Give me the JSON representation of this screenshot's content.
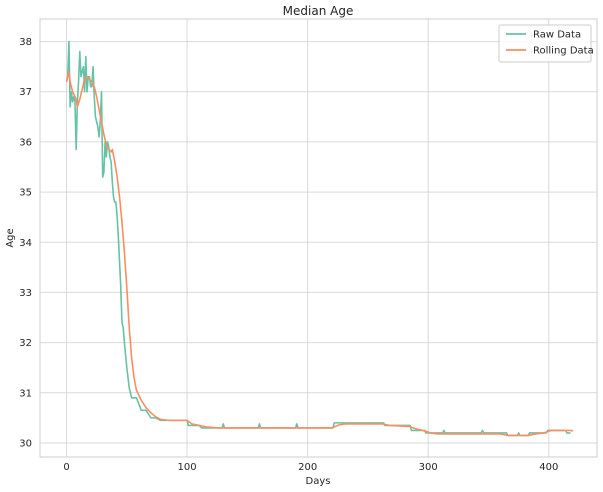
{
  "chart_data": {
    "type": "line",
    "title": "Median Age",
    "xlabel": "Days",
    "ylabel": "Age",
    "xlim": [
      -22,
      440
    ],
    "ylim": [
      29.72,
      38.45
    ],
    "xticks": [
      0,
      100,
      200,
      300,
      400
    ],
    "yticks": [
      30,
      31,
      32,
      33,
      34,
      35,
      36,
      37,
      38
    ],
    "grid": true,
    "legend_position": "top-right",
    "series": [
      {
        "name": "Raw Data",
        "color": "#66c2a5",
        "points": [
          [
            0,
            37.2
          ],
          [
            1,
            37.3
          ],
          [
            2,
            38.0
          ],
          [
            3,
            36.7
          ],
          [
            4,
            37.0
          ],
          [
            5,
            36.8
          ],
          [
            6,
            36.9
          ],
          [
            7,
            36.8
          ],
          [
            8,
            35.85
          ],
          [
            9,
            36.8
          ],
          [
            10,
            37.2
          ],
          [
            11,
            37.8
          ],
          [
            12,
            37.3
          ],
          [
            13,
            37.4
          ],
          [
            14,
            37.5
          ],
          [
            15,
            37.0
          ],
          [
            16,
            37.7
          ],
          [
            17,
            37.0
          ],
          [
            18,
            37.3
          ],
          [
            19,
            37.3
          ],
          [
            20,
            37.1
          ],
          [
            21,
            37.1
          ],
          [
            22,
            37.5
          ],
          [
            23,
            36.9
          ],
          [
            24,
            36.5
          ],
          [
            25,
            36.4
          ],
          [
            26,
            36.3
          ],
          [
            27,
            36.1
          ],
          [
            28,
            36.4
          ],
          [
            29,
            37.0
          ],
          [
            30,
            35.3
          ],
          [
            31,
            35.4
          ],
          [
            32,
            36.0
          ],
          [
            33,
            35.7
          ],
          [
            34,
            36.0
          ],
          [
            35,
            35.9
          ],
          [
            36,
            35.7
          ],
          [
            37,
            35.6
          ],
          [
            38,
            35.2
          ],
          [
            39,
            34.9
          ],
          [
            40,
            34.8
          ],
          [
            41,
            34.8
          ],
          [
            42,
            34.5
          ],
          [
            43,
            34.1
          ],
          [
            44,
            33.6
          ],
          [
            45,
            33.1
          ],
          [
            46,
            32.4
          ],
          [
            47,
            32.3
          ],
          [
            48,
            32.0
          ],
          [
            50,
            31.5
          ],
          [
            52,
            31.1
          ],
          [
            54,
            30.9
          ],
          [
            58,
            30.9
          ],
          [
            62,
            30.65
          ],
          [
            66,
            30.65
          ],
          [
            70,
            30.5
          ],
          [
            74,
            30.5
          ],
          [
            78,
            30.45
          ],
          [
            100,
            30.45
          ],
          [
            101,
            30.35
          ],
          [
            110,
            30.35
          ],
          [
            112,
            30.3
          ],
          [
            129,
            30.3
          ],
          [
            130,
            30.38
          ],
          [
            131,
            30.3
          ],
          [
            159,
            30.3
          ],
          [
            160,
            30.38
          ],
          [
            161,
            30.3
          ],
          [
            190,
            30.3
          ],
          [
            191,
            30.38
          ],
          [
            192,
            30.3
          ],
          [
            221,
            30.3
          ],
          [
            222,
            30.4
          ],
          [
            263,
            30.4
          ],
          [
            264,
            30.35
          ],
          [
            285,
            30.35
          ],
          [
            286,
            30.25
          ],
          [
            297,
            30.25
          ],
          [
            298,
            30.2
          ],
          [
            312,
            30.2
          ],
          [
            313,
            30.25
          ],
          [
            314,
            30.2
          ],
          [
            344,
            30.2
          ],
          [
            345,
            30.25
          ],
          [
            346,
            30.2
          ],
          [
            365,
            30.2
          ],
          [
            366,
            30.15
          ],
          [
            374,
            30.15
          ],
          [
            375,
            30.2
          ],
          [
            376,
            30.15
          ],
          [
            383,
            30.15
          ],
          [
            384,
            30.2
          ],
          [
            398,
            30.2
          ],
          [
            399,
            30.25
          ],
          [
            414,
            30.25
          ],
          [
            415,
            30.2
          ],
          [
            418,
            30.2
          ]
        ]
      },
      {
        "name": "Rolling Data",
        "color": "#fc8d62",
        "points": [
          [
            0,
            37.2
          ],
          [
            1,
            37.3
          ],
          [
            2,
            37.4
          ],
          [
            3,
            37.2
          ],
          [
            5,
            37.0
          ],
          [
            8,
            36.85
          ],
          [
            9,
            36.7
          ],
          [
            11,
            36.85
          ],
          [
            13,
            37.05
          ],
          [
            15,
            37.25
          ],
          [
            17,
            37.3
          ],
          [
            19,
            37.25
          ],
          [
            21,
            37.2
          ],
          [
            23,
            37.1
          ],
          [
            25,
            36.9
          ],
          [
            27,
            36.65
          ],
          [
            29,
            36.4
          ],
          [
            31,
            36.15
          ],
          [
            33,
            35.95
          ],
          [
            35,
            35.85
          ],
          [
            37,
            35.8
          ],
          [
            38,
            35.85
          ],
          [
            40,
            35.6
          ],
          [
            42,
            35.3
          ],
          [
            44,
            34.9
          ],
          [
            46,
            34.4
          ],
          [
            48,
            33.8
          ],
          [
            50,
            33.1
          ],
          [
            52,
            32.3
          ],
          [
            54,
            31.7
          ],
          [
            56,
            31.3
          ],
          [
            58,
            31.05
          ],
          [
            62,
            30.85
          ],
          [
            66,
            30.7
          ],
          [
            70,
            30.6
          ],
          [
            74,
            30.52
          ],
          [
            78,
            30.47
          ],
          [
            85,
            30.45
          ],
          [
            100,
            30.45
          ],
          [
            104,
            30.38
          ],
          [
            110,
            30.35
          ],
          [
            116,
            30.32
          ],
          [
            125,
            30.3
          ],
          [
            220,
            30.3
          ],
          [
            226,
            30.36
          ],
          [
            232,
            30.38
          ],
          [
            262,
            30.38
          ],
          [
            268,
            30.35
          ],
          [
            284,
            30.33
          ],
          [
            290,
            30.28
          ],
          [
            297,
            30.24
          ],
          [
            302,
            30.2
          ],
          [
            308,
            30.18
          ],
          [
            360,
            30.18
          ],
          [
            366,
            30.15
          ],
          [
            383,
            30.15
          ],
          [
            389,
            30.18
          ],
          [
            396,
            30.2
          ],
          [
            402,
            30.25
          ],
          [
            418,
            30.25
          ],
          [
            420,
            30.24
          ]
        ]
      }
    ]
  }
}
